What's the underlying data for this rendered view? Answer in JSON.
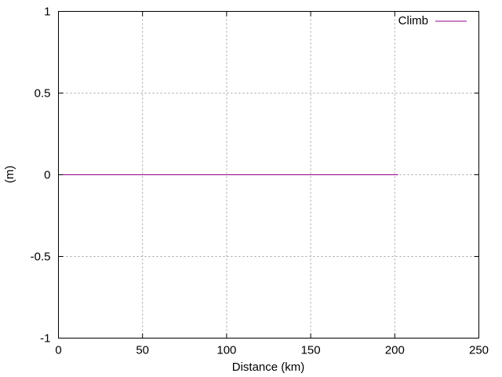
{
  "chart_data": {
    "type": "line",
    "title": "",
    "xlabel": "Distance (km)",
    "ylabel": "(m)",
    "xlim": [
      0,
      250
    ],
    "ylim": [
      -1,
      1
    ],
    "x_ticks": [
      {
        "value": 0,
        "label": "0"
      },
      {
        "value": 50,
        "label": "50"
      },
      {
        "value": 100,
        "label": "100"
      },
      {
        "value": 150,
        "label": "150"
      },
      {
        "value": 200,
        "label": "200"
      },
      {
        "value": 250,
        "label": "250"
      }
    ],
    "y_ticks": [
      {
        "value": -1,
        "label": "-1"
      },
      {
        "value": -0.5,
        "label": "-0.5"
      },
      {
        "value": 0,
        "label": "0"
      },
      {
        "value": 0.5,
        "label": "0.5"
      },
      {
        "value": 1,
        "label": "1"
      }
    ],
    "grid": true,
    "legend": {
      "position": "top-right"
    },
    "series": [
      {
        "name": "Climb",
        "color": "#94008f",
        "x": [
          0,
          202
        ],
        "y": [
          0,
          0
        ]
      }
    ]
  }
}
